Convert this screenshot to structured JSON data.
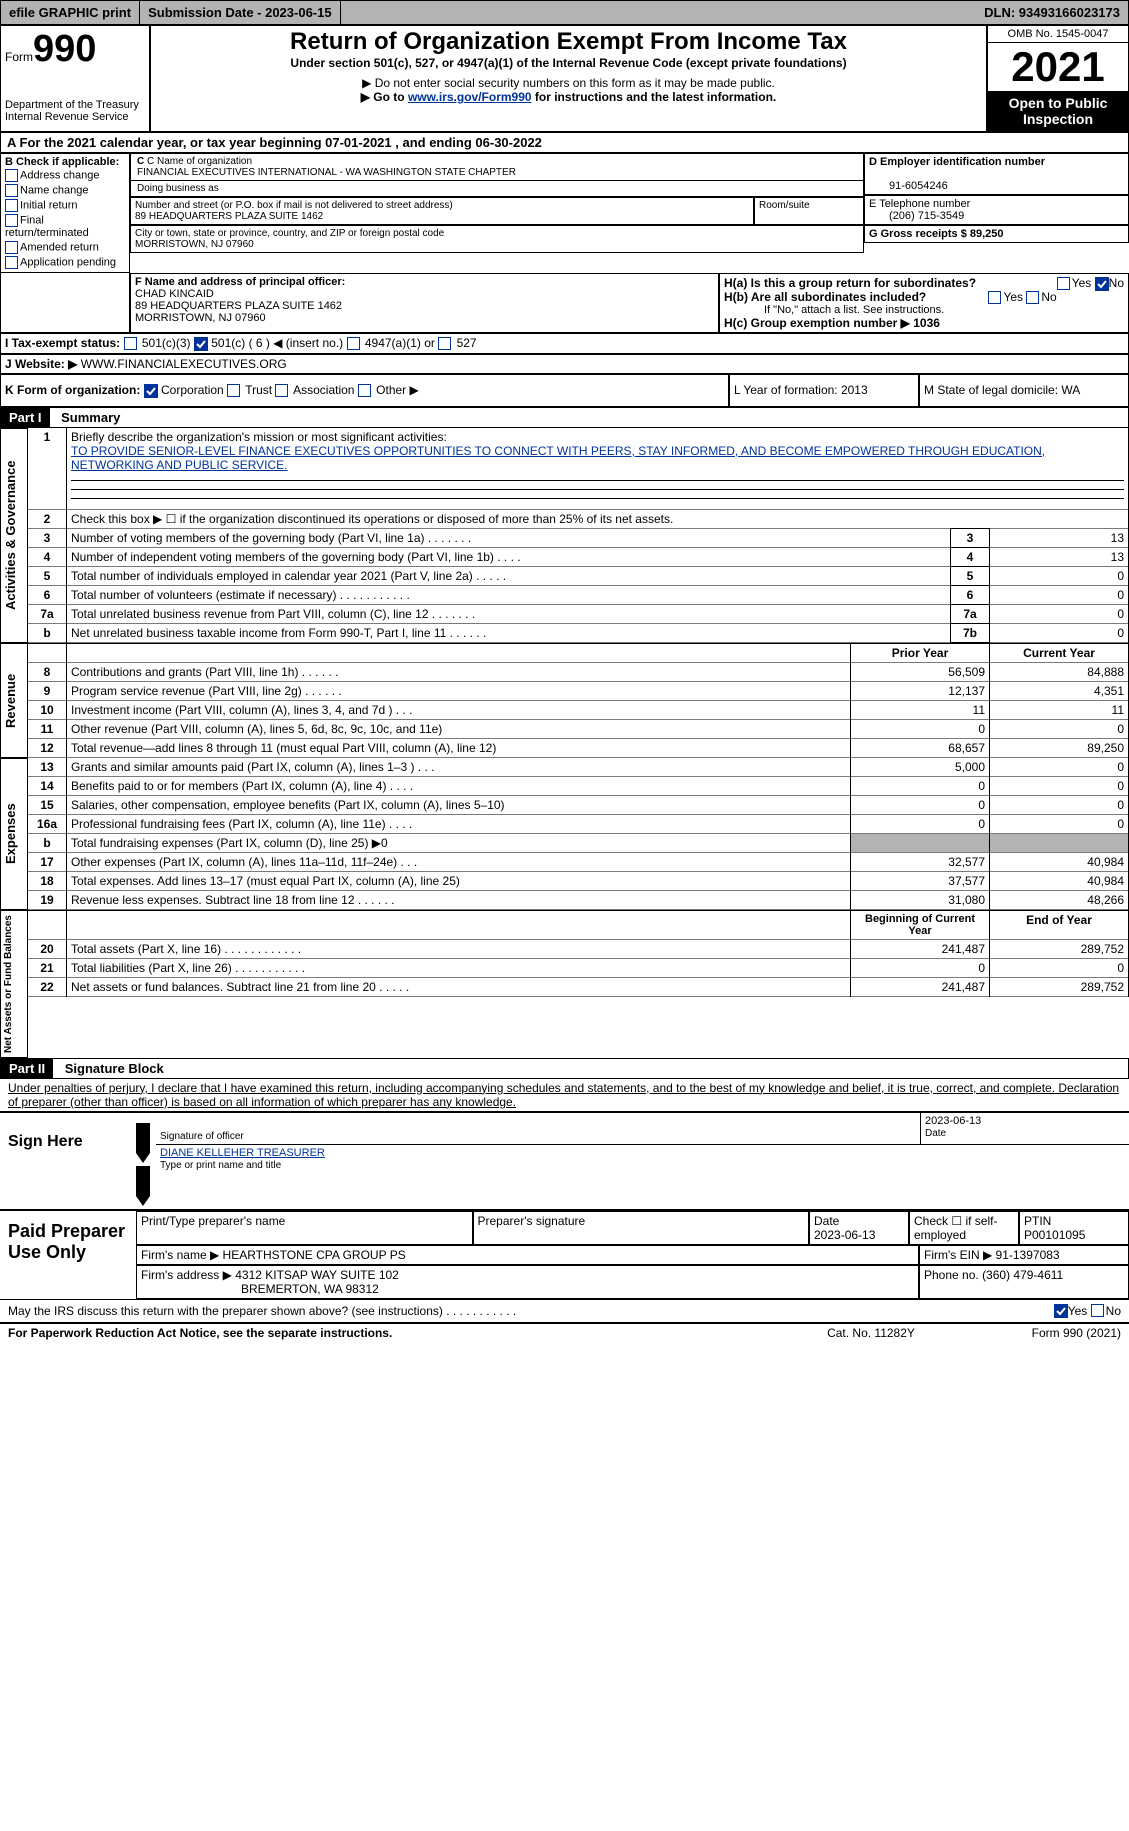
{
  "topbar": {
    "efile": "efile GRAPHIC print",
    "submission": "Submission Date - 2023-06-15",
    "dln": "DLN: 93493166023173"
  },
  "header": {
    "form_label": "Form",
    "form_number": "990",
    "dept1": "Department of the Treasury",
    "dept2": "Internal Revenue Service",
    "title": "Return of Organization Exempt From Income Tax",
    "subtitle": "Under section 501(c), 527, or 4947(a)(1) of the Internal Revenue Code (except private foundations)",
    "note1": "▶ Do not enter social security numbers on this form as it may be made public.",
    "note2_prefix": "▶ Go to ",
    "note2_link": "www.irs.gov/Form990",
    "note2_suffix": " for instructions and the latest information.",
    "omb": "OMB No. 1545-0047",
    "year": "2021",
    "inspection": "Open to Public Inspection"
  },
  "section_a": "A For the 2021 calendar year, or tax year beginning 07-01-2021     , and ending 06-30-2022",
  "section_b": {
    "label": "B Check if applicable:",
    "opts": [
      "Address change",
      "Name change",
      "Initial return",
      "Final return/terminated",
      "Amended return",
      "Application pending"
    ]
  },
  "section_c": {
    "name_label": "C Name of organization",
    "name": "FINANCIAL EXECUTIVES INTERNATIONAL - WA WASHINGTON STATE CHAPTER",
    "dba_label": "Doing business as",
    "street_label": "Number and street (or P.O. box if mail is not delivered to street address)",
    "street": "89 HEADQUARTERS PLAZA SUITE 1462",
    "room_label": "Room/suite",
    "city_label": "City or town, state or province, country, and ZIP or foreign postal code",
    "city": "MORRISTOWN, NJ  07960"
  },
  "section_d": {
    "label": "D Employer identification number",
    "value": "91-6054246"
  },
  "section_e": {
    "label": "E Telephone number",
    "value": "(206) 715-3549"
  },
  "section_g": {
    "label": "G Gross receipts $ 89,250"
  },
  "section_f": {
    "label": "F  Name and address of principal officer:",
    "name": "CHAD KINCAID",
    "addr1": "89 HEADQUARTERS PLAZA SUITE 1462",
    "addr2": "MORRISTOWN, NJ  07960"
  },
  "section_h": {
    "ha": "H(a)  Is this a group return for subordinates?",
    "hb": "H(b)  Are all subordinates included?",
    "hb_note": "If \"No,\" attach a list. See instructions.",
    "hc": "H(c)  Group exemption number ▶   1036",
    "yes": "Yes",
    "no": "No"
  },
  "section_i": {
    "label": "I  Tax-exempt status:",
    "c3": "501(c)(3)",
    "c": "501(c) ( 6 ) ◀ (insert no.)",
    "a": "4947(a)(1) or",
    "527": "527"
  },
  "section_j": {
    "label": "J  Website: ▶",
    "value": "  WWW.FINANCIALEXECUTIVES.ORG"
  },
  "section_k": {
    "label": "K Form of organization:",
    "corp": "Corporation",
    "trust": "Trust",
    "assoc": "Association",
    "other": "Other ▶"
  },
  "section_l": "L Year of formation: 2013",
  "section_m": "M State of legal domicile: WA",
  "part1": {
    "header": "Part I",
    "title": "Summary",
    "line1_label": "Briefly describe the organization's mission or most significant activities:",
    "mission": "TO PROVIDE SENIOR-LEVEL FINANCE EXECUTIVES OPPORTUNITIES TO CONNECT WITH PEERS, STAY INFORMED, AND BECOME EMPOWERED THROUGH EDUCATION, NETWORKING AND PUBLIC SERVICE.",
    "line2": "Check this box ▶ ☐ if the organization discontinued its operations or disposed of more than 25% of its net assets.",
    "rows_a": [
      {
        "n": "3",
        "label": "Number of voting members of the governing body (Part VI, line 1a)   .    .    .    .    .    .    .",
        "box": "3",
        "val": "13"
      },
      {
        "n": "4",
        "label": "Number of independent voting members of the governing body (Part VI, line 1b)  .    .    .    .",
        "box": "4",
        "val": "13"
      },
      {
        "n": "5",
        "label": "Total number of individuals employed in calendar year 2021 (Part V, line 2a)  .    .    .    .    .",
        "box": "5",
        "val": "0"
      },
      {
        "n": "6",
        "label": "Total number of volunteers (estimate if necessary)    .    .    .    .    .    .    .    .    .    .    .",
        "box": "6",
        "val": "0"
      },
      {
        "n": "7a",
        "label": "Total unrelated business revenue from Part VIII, column (C), line 12  .    .    .    .    .    .    .",
        "box": "7a",
        "val": "0"
      },
      {
        "n": "b",
        "label": "Net unrelated business taxable income from Form 990-T, Part I, line 11  .    .    .    .    .    .",
        "box": "7b",
        "val": "0"
      }
    ],
    "col_prior": "Prior Year",
    "col_current": "Current Year",
    "rows_rev": [
      {
        "n": "8",
        "label": "Contributions and grants (Part VIII, line 1h)   .    .    .    .    .    .",
        "p": "56,509",
        "c": "84,888"
      },
      {
        "n": "9",
        "label": "Program service revenue (Part VIII, line 2g)   .    .    .    .    .    .",
        "p": "12,137",
        "c": "4,351"
      },
      {
        "n": "10",
        "label": "Investment income (Part VIII, column (A), lines 3, 4, and 7d )   .    .    .",
        "p": "11",
        "c": "11"
      },
      {
        "n": "11",
        "label": "Other revenue (Part VIII, column (A), lines 5, 6d, 8c, 9c, 10c, and 11e)",
        "p": "0",
        "c": "0"
      },
      {
        "n": "12",
        "label": "Total revenue—add lines 8 through 11 (must equal Part VIII, column (A), line 12)",
        "p": "68,657",
        "c": "89,250"
      }
    ],
    "rows_exp": [
      {
        "n": "13",
        "label": "Grants and similar amounts paid (Part IX, column (A), lines 1–3 )  .    .    .",
        "p": "5,000",
        "c": "0"
      },
      {
        "n": "14",
        "label": "Benefits paid to or for members (Part IX, column (A), line 4)  .    .    .    .",
        "p": "0",
        "c": "0"
      },
      {
        "n": "15",
        "label": "Salaries, other compensation, employee benefits (Part IX, column (A), lines 5–10)",
        "p": "0",
        "c": "0"
      },
      {
        "n": "16a",
        "label": "Professional fundraising fees (Part IX, column (A), line 11e)   .    .    .    .",
        "p": "0",
        "c": "0"
      },
      {
        "n": "b",
        "label": "Total fundraising expenses (Part IX, column (D), line 25) ▶0",
        "p": "",
        "c": "",
        "gray": true
      },
      {
        "n": "17",
        "label": "Other expenses (Part IX, column (A), lines 11a–11d, 11f–24e)   .    .    .",
        "p": "32,577",
        "c": "40,984"
      },
      {
        "n": "18",
        "label": "Total expenses. Add lines 13–17 (must equal Part IX, column (A), line 25)",
        "p": "37,577",
        "c": "40,984"
      },
      {
        "n": "19",
        "label": "Revenue less expenses. Subtract line 18 from line 12  .    .    .    .    .    .",
        "p": "31,080",
        "c": "48,266"
      }
    ],
    "col_begin": "Beginning of Current Year",
    "col_end": "End of Year",
    "rows_net": [
      {
        "n": "20",
        "label": "Total assets (Part X, line 16)  .    .    .    .    .    .    .    .    .    .    .    .",
        "p": "241,487",
        "c": "289,752"
      },
      {
        "n": "21",
        "label": "Total liabilities (Part X, line 26)  .    .    .    .    .    .    .    .    .    .    .",
        "p": "0",
        "c": "0"
      },
      {
        "n": "22",
        "label": "Net assets or fund balances. Subtract line 21 from line 20  .    .    .    .    .",
        "p": "241,487",
        "c": "289,752"
      }
    ]
  },
  "part2": {
    "header": "Part II",
    "title": "Signature Block",
    "declaration": "Under penalties of perjury, I declare that I have examined this return, including accompanying schedules and statements, and to the best of my knowledge and belief, it is true, correct, and complete. Declaration of preparer (other than officer) is based on all information of which preparer has any knowledge.",
    "sign_here": "Sign Here",
    "sig_officer": "Signature of officer",
    "sig_date": "2023-06-13",
    "sig_date_label": "Date",
    "sig_name": "DIANE KELLEHER  TREASURER",
    "sig_name_label": "Type or print name and title",
    "paid": "Paid Preparer Use Only",
    "prep_name_label": "Print/Type preparer's name",
    "prep_sig_label": "Preparer's signature",
    "prep_date_label": "Date",
    "prep_date": "2023-06-13",
    "prep_check": "Check ☐ if self-employed",
    "ptin_label": "PTIN",
    "ptin": "P00101095",
    "firm_name_label": "Firm's name      ▶",
    "firm_name": "HEARTHSTONE CPA GROUP PS",
    "firm_ein_label": "Firm's EIN ▶",
    "firm_ein": "91-1397083",
    "firm_addr_label": "Firm's address ▶",
    "firm_addr": "4312 KITSAP WAY SUITE 102",
    "firm_addr2": "BREMERTON, WA  98312",
    "phone_label": "Phone no.",
    "phone": "(360) 479-4611",
    "discuss": "May the IRS discuss this return with the preparer shown above? (see instructions)   .    .    .    .    .    .    .    .    .    .    ."
  },
  "footer": {
    "left": "For Paperwork Reduction Act Notice, see the separate instructions.",
    "center": "Cat. No. 11282Y",
    "right": "Form 990 (2021)"
  },
  "labels": {
    "activities": "Activities & Governance",
    "revenue": "Revenue",
    "expenses": "Expenses",
    "net": "Net Assets or Fund Balances"
  }
}
